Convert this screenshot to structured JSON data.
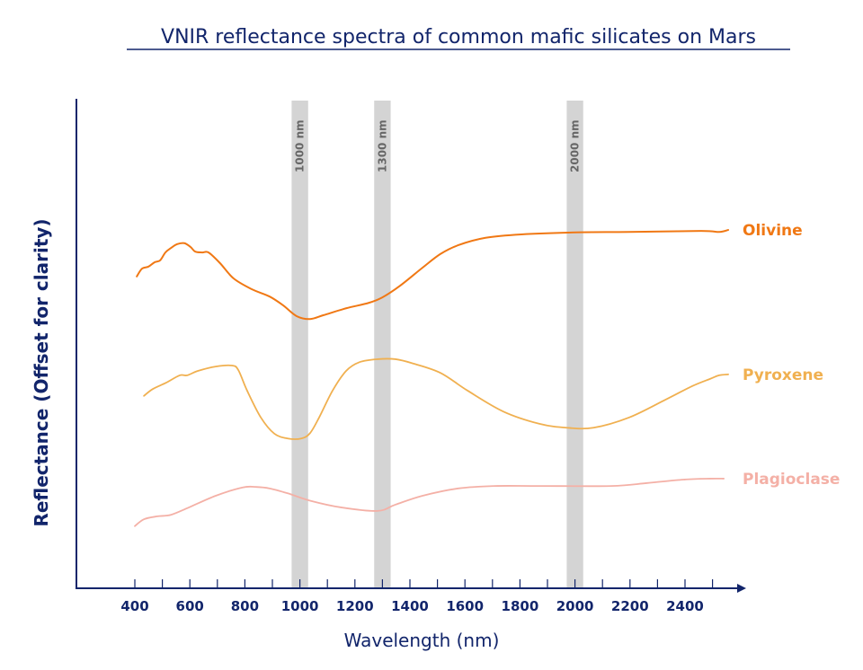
{
  "chart_data": {
    "type": "line",
    "title": "VNIR reflectance spectra of common mafic silicates on Mars",
    "xlabel": "Wavelength (nm)",
    "ylabel": "Reflectance (Offset for clarity)",
    "xlim": [
      400,
      2600
    ],
    "ylim": [
      0,
      100
    ],
    "xticks": [
      "400",
      "600",
      "800",
      "1000",
      "1200",
      "1400",
      "1600",
      "1800",
      "2000",
      "2200",
      "2400"
    ],
    "grid": false,
    "bands": [
      {
        "label": "1000 nm",
        "center": 1000,
        "width": 60
      },
      {
        "label": "1300 nm",
        "center": 1300,
        "width": 60
      },
      {
        "label": "2000 nm",
        "center": 2000,
        "width": 60
      }
    ],
    "band_color": "#d4d4d4",
    "axis_color": "#12256b",
    "series": [
      {
        "name": "Olivine",
        "color": "#f07814",
        "x": [
          407,
          426,
          449,
          472,
          492,
          511,
          531,
          554,
          580,
          603,
          619,
          645,
          668,
          710,
          759,
          825,
          890,
          939,
          988,
          1037,
          1086,
          1168,
          1250,
          1299,
          1364,
          1446,
          1511,
          1576,
          1675,
          1805,
          2001,
          2197,
          2459,
          2524,
          2557
        ],
        "y": [
          63.7,
          65.3,
          65.7,
          66.6,
          67.0,
          68.6,
          69.5,
          70.3,
          70.5,
          69.7,
          68.8,
          68.6,
          68.6,
          66.4,
          63.3,
          61.1,
          59.6,
          57.8,
          55.6,
          55.0,
          55.8,
          57.2,
          58.3,
          59.4,
          61.8,
          65.5,
          68.3,
          70.1,
          71.6,
          72.3,
          72.7,
          72.8,
          73.0,
          72.8,
          73.2
        ]
      },
      {
        "name": "Pyroxene",
        "color": "#f0b050",
        "x": [
          433,
          465,
          514,
          563,
          590,
          629,
          694,
          753,
          776,
          808,
          858,
          907,
          956,
          1005,
          1037,
          1070,
          1119,
          1168,
          1217,
          1282,
          1348,
          1413,
          1511,
          1609,
          1740,
          1871,
          1969,
          2067,
          2197,
          2328,
          2426,
          2492,
          2524,
          2557
        ],
        "y": [
          39.3,
          40.7,
          42.0,
          43.5,
          43.5,
          44.4,
          45.3,
          45.5,
          44.6,
          40.4,
          34.9,
          31.6,
          30.6,
          30.6,
          31.7,
          34.9,
          40.4,
          44.4,
          46.2,
          46.8,
          46.8,
          45.9,
          44.0,
          40.4,
          36.1,
          33.6,
          32.8,
          32.8,
          34.9,
          38.5,
          41.3,
          42.8,
          43.5,
          43.7
        ]
      },
      {
        "name": "Plagioclase",
        "color": "#f4b0a6",
        "x": [
          400,
          433,
          482,
          531,
          596,
          694,
          792,
          841,
          890,
          956,
          1037,
          1152,
          1282,
          1348,
          1446,
          1576,
          1707,
          1871,
          2132,
          2263,
          2394,
          2492,
          2541
        ],
        "y": [
          12.7,
          14.1,
          14.7,
          15.0,
          16.5,
          18.9,
          20.6,
          20.7,
          20.4,
          19.4,
          17.9,
          16.5,
          15.8,
          17.1,
          18.9,
          20.4,
          20.9,
          20.9,
          20.9,
          21.5,
          22.2,
          22.4,
          22.4
        ]
      }
    ]
  }
}
